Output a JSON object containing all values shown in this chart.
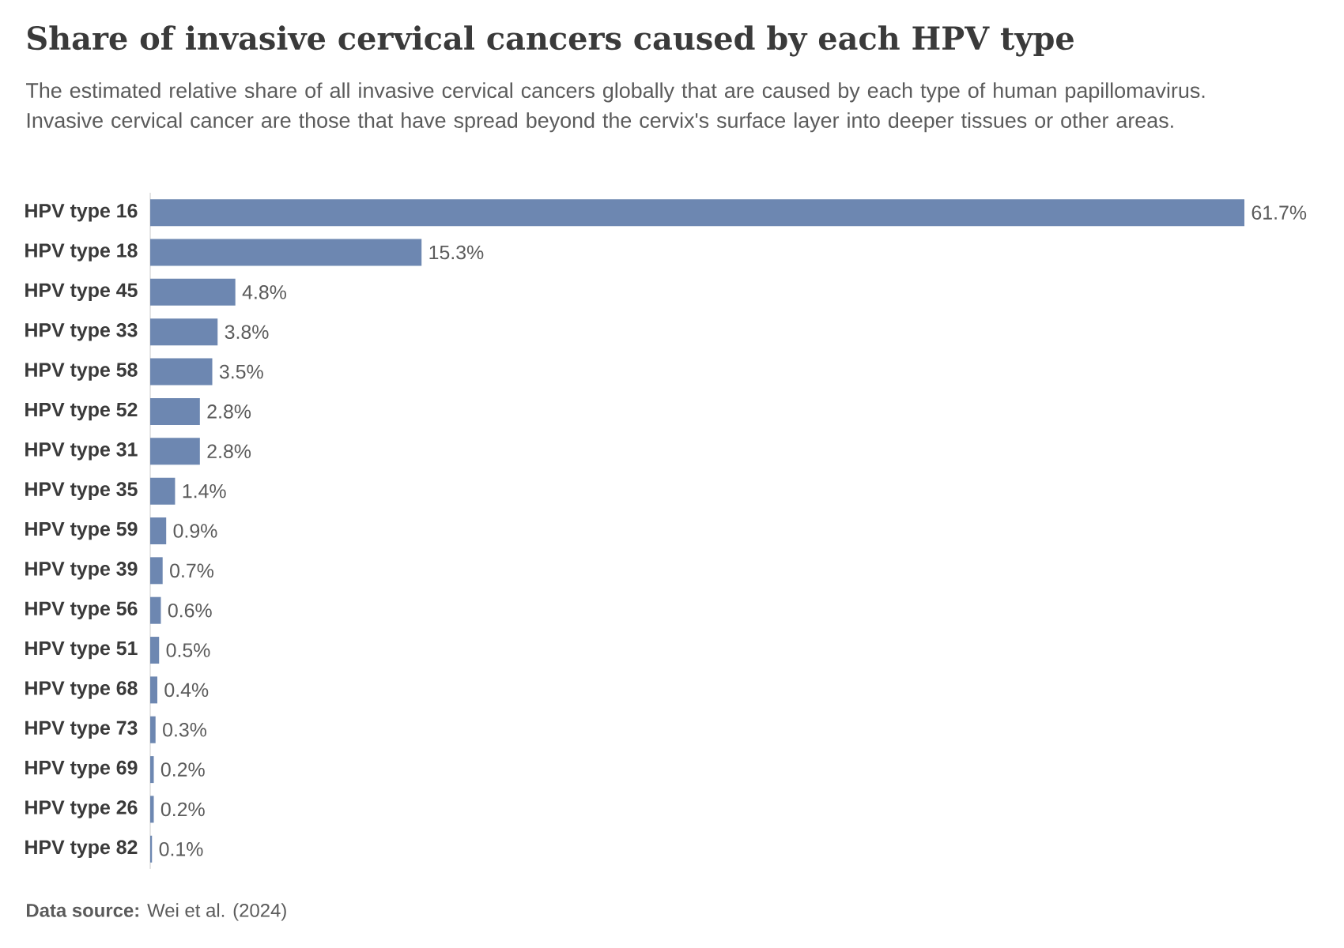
{
  "chart_data": {
    "type": "bar",
    "orientation": "horizontal",
    "title": "Share of invasive cervical cancers caused by each HPV type",
    "subtitle": "The estimated relative share of all invasive cervical cancers globally that are caused by each type of human papillomavirus. Invasive cervical cancer are those that have spread beyond the cervix's surface layer into deeper tissues or other areas.",
    "categories": [
      "HPV type 16",
      "HPV type 18",
      "HPV type 45",
      "HPV type 33",
      "HPV type 58",
      "HPV type 52",
      "HPV type 31",
      "HPV type 35",
      "HPV type 59",
      "HPV type 39",
      "HPV type 56",
      "HPV type 51",
      "HPV type 68",
      "HPV type 73",
      "HPV type 69",
      "HPV type 26",
      "HPV type 82"
    ],
    "values": [
      61.7,
      15.3,
      4.8,
      3.8,
      3.5,
      2.8,
      2.8,
      1.4,
      0.9,
      0.7,
      0.6,
      0.5,
      0.4,
      0.3,
      0.2,
      0.2,
      0.1
    ],
    "value_labels": [
      "61.7%",
      "15.3%",
      "4.8%",
      "3.8%",
      "3.5%",
      "2.8%",
      "2.8%",
      "1.4%",
      "0.9%",
      "0.7%",
      "0.6%",
      "0.5%",
      "0.4%",
      "0.3%",
      "0.2%",
      "0.2%",
      "0.1%"
    ],
    "color": "#6d87b1",
    "annotations": [
      "**Data source:** Wei et al. (2024)"
    ]
  }
}
